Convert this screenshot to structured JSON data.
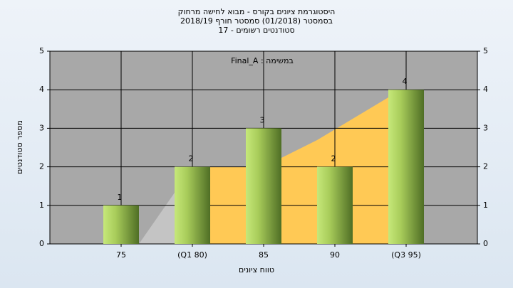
{
  "chart_data": {
    "type": "bar",
    "title": "היסטוגרמת ציונים בקורס - מבוא לחישה מרחוק",
    "subtitle": "בסמסטר  (01/2018)  סמסטר חורף 2018/19",
    "subtitle2": "סטודנטים רשומים - 17",
    "annotation": "Final_A : במשימה",
    "x_label": "טווח ציונים",
    "y_label": "מספר סטודנטים",
    "categories": [
      "75",
      "(Q1 80)",
      "85",
      "90",
      "(Q3 95)"
    ],
    "values": [
      1,
      2,
      3,
      2,
      4
    ],
    "ylim": [
      0,
      5
    ],
    "yticks": [
      0,
      1,
      2,
      3,
      4,
      5
    ],
    "grid": true
  }
}
